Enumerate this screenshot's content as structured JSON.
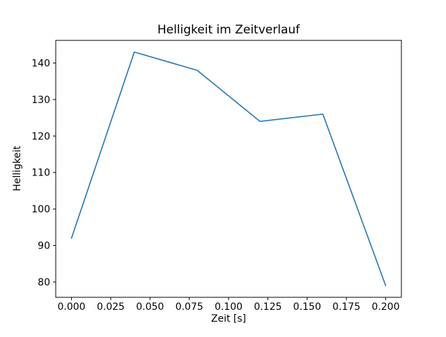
{
  "chart_data": {
    "type": "line",
    "title": "Helligkeit im Zeitverlauf",
    "xlabel": "Zeit [s]",
    "ylabel": "Helligkeit",
    "x": [
      0.0,
      0.04,
      0.08,
      0.12,
      0.16,
      0.2
    ],
    "y": [
      92,
      143,
      138,
      124,
      126,
      79
    ],
    "xlim": [
      -0.01,
      0.21
    ],
    "ylim": [
      75.8,
      146.2
    ],
    "xticks": [
      0.0,
      0.025,
      0.05,
      0.075,
      0.1,
      0.125,
      0.15,
      0.175,
      0.2
    ],
    "xtick_labels": [
      "0.000",
      "0.025",
      "0.050",
      "0.075",
      "0.100",
      "0.125",
      "0.150",
      "0.175",
      "0.200"
    ],
    "yticks": [
      80,
      90,
      100,
      110,
      120,
      130,
      140
    ],
    "ytick_labels": [
      "80",
      "90",
      "100",
      "110",
      "120",
      "130",
      "140"
    ],
    "line_color": "#1f77b4",
    "background": "#ffffff",
    "grid": false,
    "legend": null
  }
}
